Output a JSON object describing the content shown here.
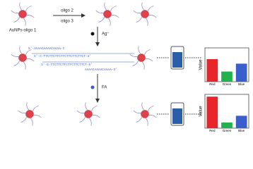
{
  "labels": {
    "particle": "AuNPs-oligo 1",
    "oligo2": "oligo 2",
    "oligo3": "oligo 3",
    "silver": "Ag⁺",
    "folate": "FA",
    "seq_top": "5'-AAAACAAAACAAAA-C",
    "seq_mid1": "5'-C-TTCTTCTTCTTCTTCTTCTTCT-3'",
    "seq_mid2": "3'-G-TTCTTCTTCTTCTTCTTCT-5'",
    "seq_bot": "AAAACAAAACAAAA-3'"
  },
  "chart_data": [
    {
      "type": "bar",
      "y_label": "Value",
      "categories": [
        "Red",
        "Green",
        "Blue"
      ],
      "values": [
        100,
        45,
        80
      ],
      "colors": [
        "#e8262a",
        "#22b14c",
        "#3a5fcd"
      ],
      "ylim": [
        0,
        150
      ]
    },
    {
      "type": "bar",
      "y_label": "Value",
      "categories": [
        "Red",
        "Green",
        "Blue"
      ],
      "values": [
        140,
        25,
        55
      ],
      "colors": [
        "#e8262a",
        "#22b14c",
        "#3a5fcd"
      ],
      "ylim": [
        0,
        150
      ]
    }
  ]
}
